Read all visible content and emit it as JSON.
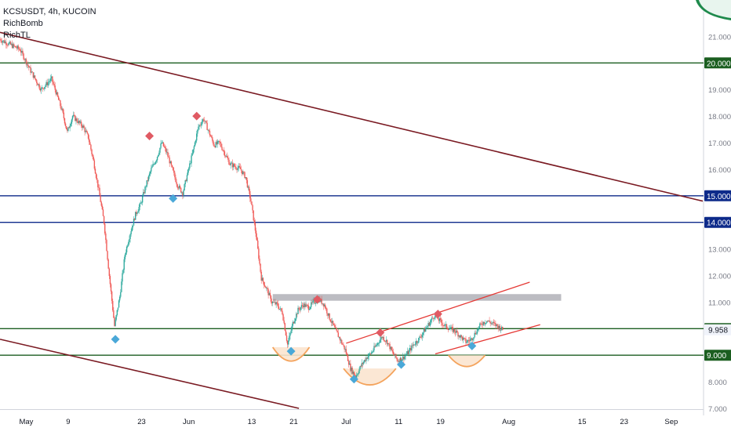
{
  "header": {
    "title": "KCSUSDT, 4h, KUCOIN",
    "indicators": [
      "RichBomb",
      "RichTL"
    ]
  },
  "chart_data": {
    "type": "line",
    "symbol": "KCSUSDT",
    "timeframe": "4h",
    "exchange": "KUCOIN",
    "currency_label": "USDT",
    "y_axis": {
      "range": [
        7.0,
        22.0
      ],
      "ticks": [
        "21.000",
        "20.000",
        "19.000",
        "18.000",
        "17.000",
        "16.000",
        "15.000",
        "14.000",
        "13.000",
        "12.000",
        "11.000",
        "10.000",
        "9.958",
        "9.000",
        "8.000",
        "7.000"
      ],
      "tick_values": [
        21,
        20,
        19,
        18,
        17,
        16,
        15,
        14,
        13,
        12,
        11,
        10,
        9.958,
        9,
        8,
        7
      ],
      "highlighted": {
        "20.000": "#1b5e20",
        "15.000": "#0d2a8a",
        "14.000": "#0d2a8a",
        "10.000": "#1b5e20",
        "9.000": "#1b5e20"
      },
      "current_price": "9.958"
    },
    "x_axis": {
      "ticks": [
        "May",
        "9",
        "23",
        "Jun",
        "13",
        "21",
        "Jul",
        "11",
        "19",
        "Aug",
        "15",
        "23",
        "Sep"
      ],
      "tick_days": [
        1,
        9,
        23,
        32,
        44,
        52,
        62,
        72,
        80,
        93,
        107,
        115,
        124
      ],
      "range_days": [
        -4,
        130
      ]
    },
    "price_path": [
      [
        -4,
        20.9
      ],
      [
        0,
        20.5
      ],
      [
        2,
        19.7
      ],
      [
        4,
        19.0
      ],
      [
        6,
        19.4
      ],
      [
        8,
        18.2
      ],
      [
        9,
        17.4
      ],
      [
        10,
        18.0
      ],
      [
        12,
        17.6
      ],
      [
        13,
        17.2
      ],
      [
        14,
        16.3
      ],
      [
        15,
        15.2
      ],
      [
        16,
        14.0
      ],
      [
        17,
        12.0
      ],
      [
        18,
        10.1
      ],
      [
        19,
        11.2
      ],
      [
        20,
        12.8
      ],
      [
        21,
        13.6
      ],
      [
        22,
        14.3
      ],
      [
        23,
        14.7
      ],
      [
        24,
        15.4
      ],
      [
        25,
        16.0
      ],
      [
        26,
        16.4
      ],
      [
        27,
        17.0
      ],
      [
        28,
        16.6
      ],
      [
        29,
        16.0
      ],
      [
        30,
        15.4
      ],
      [
        31,
        15.1
      ],
      [
        32,
        15.9
      ],
      [
        33,
        16.7
      ],
      [
        34,
        17.6
      ],
      [
        35,
        17.9
      ],
      [
        36,
        17.4
      ],
      [
        37,
        16.9
      ],
      [
        38,
        17.0
      ],
      [
        39,
        16.6
      ],
      [
        40,
        16.2
      ],
      [
        41,
        16.1
      ],
      [
        42,
        16.0
      ],
      [
        43,
        15.7
      ],
      [
        44,
        14.8
      ],
      [
        45,
        13.5
      ],
      [
        46,
        11.9
      ],
      [
        47,
        11.5
      ],
      [
        48,
        11.0
      ],
      [
        49,
        10.9
      ],
      [
        50,
        10.6
      ],
      [
        51,
        9.4
      ],
      [
        52,
        10.2
      ],
      [
        53,
        10.7
      ],
      [
        54,
        10.9
      ],
      [
        55,
        10.8
      ],
      [
        56,
        11.0
      ],
      [
        57,
        11.1
      ],
      [
        58,
        10.9
      ],
      [
        59,
        10.4
      ],
      [
        60,
        10.0
      ],
      [
        61,
        9.6
      ],
      [
        62,
        9.2
      ],
      [
        63,
        8.5
      ],
      [
        64,
        8.2
      ],
      [
        65,
        8.6
      ],
      [
        66,
        8.9
      ],
      [
        67,
        9.1
      ],
      [
        68,
        9.4
      ],
      [
        69,
        9.7
      ],
      [
        70,
        9.5
      ],
      [
        71,
        9.1
      ],
      [
        72,
        8.8
      ],
      [
        73,
        8.9
      ],
      [
        74,
        9.1
      ],
      [
        75,
        9.4
      ],
      [
        76,
        9.6
      ],
      [
        77,
        9.9
      ],
      [
        78,
        10.2
      ],
      [
        79,
        10.5
      ],
      [
        80,
        10.3
      ],
      [
        81,
        10.1
      ],
      [
        82,
        10.0
      ],
      [
        83,
        9.9
      ],
      [
        84,
        9.7
      ],
      [
        85,
        9.5
      ],
      [
        86,
        9.6
      ],
      [
        87,
        9.9
      ],
      [
        88,
        10.2
      ],
      [
        89,
        10.3
      ],
      [
        90,
        10.2
      ],
      [
        91,
        10.1
      ],
      [
        92,
        9.958
      ]
    ],
    "markers": [
      {
        "kind": "high",
        "day": 24.5,
        "price": 17.25
      },
      {
        "kind": "high",
        "day": 33.5,
        "price": 18.0
      },
      {
        "kind": "high",
        "day": 56.5,
        "price": 11.1
      },
      {
        "kind": "high",
        "day": 68.5,
        "price": 9.85
      },
      {
        "kind": "high",
        "day": 79.5,
        "price": 10.55
      },
      {
        "kind": "low",
        "day": 18.0,
        "price": 9.6
      },
      {
        "kind": "low",
        "day": 29.0,
        "price": 14.9
      },
      {
        "kind": "low",
        "day": 51.5,
        "price": 9.15
      },
      {
        "kind": "low",
        "day": 63.5,
        "price": 8.1
      },
      {
        "kind": "low",
        "day": 72.5,
        "price": 8.65
      },
      {
        "kind": "low",
        "day": 86.0,
        "price": 9.35
      }
    ],
    "horizontal_levels": [
      {
        "price": 20.0,
        "color": "#1b5e20"
      },
      {
        "price": 15.0,
        "color": "#0d2a8a"
      },
      {
        "price": 14.0,
        "color": "#0d2a8a"
      },
      {
        "price": 10.0,
        "color": "#1b5e20"
      },
      {
        "price": 9.0,
        "color": "#1b5e20"
      }
    ],
    "trend_lines": [
      {
        "from": [
          -4,
          21.15
        ],
        "to": [
          130,
          14.8
        ],
        "color": "#7a1a22"
      },
      {
        "from": [
          -4,
          9.6
        ],
        "to": [
          53,
          7.0
        ],
        "color": "#7a1a22"
      },
      {
        "from": [
          62,
          9.45
        ],
        "to": [
          97,
          11.75
        ],
        "color": "#e53935"
      },
      {
        "from": [
          79,
          9.05
        ],
        "to": [
          99,
          10.15
        ],
        "color": "#e53935"
      }
    ],
    "resistance_zone": {
      "day_from": 48,
      "day_to": 103,
      "price_from": 11.05,
      "price_to": 11.3,
      "color": "#a6a6ad"
    },
    "bowls": [
      {
        "day_center": 51.5,
        "half_width_days": 3.5,
        "top_price": 9.3,
        "depth_price": 0.55
      },
      {
        "day_center": 66.5,
        "half_width_days": 5.0,
        "top_price": 8.5,
        "depth_price": 0.65
      },
      {
        "day_center": 85.0,
        "half_width_days": 3.5,
        "top_price": 9.0,
        "depth_price": 0.45
      }
    ],
    "colors": {
      "up": "#26a69a",
      "down": "#ef5350",
      "high_marker": "#e05a63",
      "low_marker": "#4aa8d8",
      "bowl_fill": "#fbe4cf",
      "bowl_stroke": "#f4a35c",
      "current_price_bg": "#f0f3fa"
    }
  }
}
